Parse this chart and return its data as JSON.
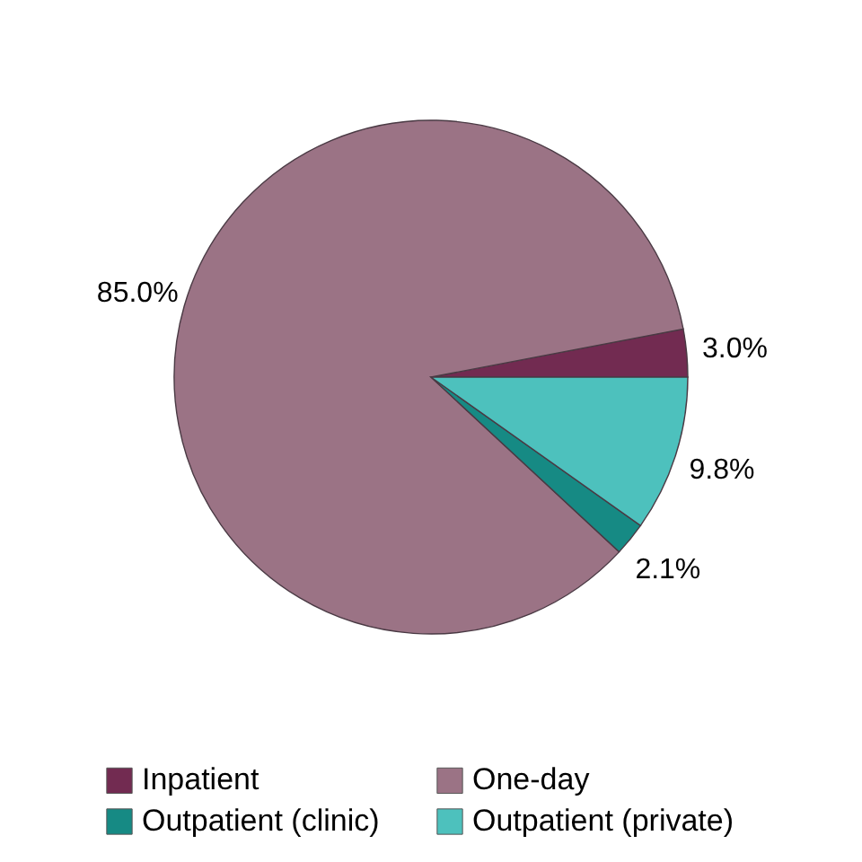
{
  "chart_data": {
    "type": "pie",
    "categories": [
      "Inpatient",
      "One-day",
      "Outpatient (clinic)",
      "Outpatient (private)"
    ],
    "values": [
      3.0,
      85.0,
      2.1,
      9.8
    ],
    "colors": [
      "#722b51",
      "#9b7385",
      "#168a84",
      "#4dc1bd"
    ],
    "value_labels": [
      "3.0%",
      "85.0%",
      "2.1%",
      "9.8%"
    ],
    "legend": "bottom"
  }
}
